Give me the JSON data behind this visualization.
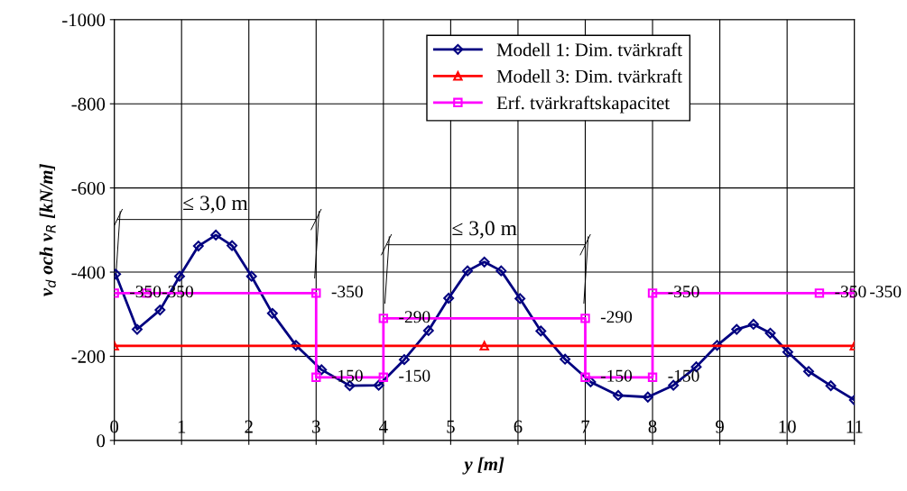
{
  "chart_data": {
    "type": "line",
    "xlabel": "y [m]",
    "ylabel": "v$_{d}$ och v$_{R}$ [kN/m]",
    "xlim": [
      0,
      11
    ],
    "xticks": [
      0,
      1,
      2,
      3,
      4,
      5,
      6,
      7,
      8,
      9,
      10,
      11
    ],
    "ylim": [
      0,
      -1000
    ],
    "yticks": [
      0,
      -200,
      -400,
      -600,
      -800,
      -1000
    ],
    "grid": true,
    "legend": "top",
    "line_style": "solid",
    "series": [
      {
        "name": "Modell 1: Dim. tvärkraft",
        "color": "#000080",
        "marker": "diamond",
        "x": [
          0.02,
          0.34,
          0.68,
          0.97,
          1.25,
          1.51,
          1.75,
          2.04,
          2.35,
          2.7,
          3.08,
          3.5,
          3.93,
          4.31,
          4.67,
          4.97,
          5.25,
          5.5,
          5.75,
          6.03,
          6.34,
          6.7,
          7.08,
          7.49,
          7.93,
          8.31,
          8.65,
          8.96,
          9.25,
          9.5,
          9.75,
          10.01,
          10.32,
          10.65,
          11.0
        ],
        "values": [
          -395,
          -264,
          -310,
          -390,
          -462,
          -488,
          -463,
          -390,
          -302,
          -226,
          -168,
          -130,
          -131,
          -192,
          -261,
          -338,
          -403,
          -424,
          -403,
          -337,
          -260,
          -193,
          -139,
          -107,
          -103,
          -131,
          -175,
          -226,
          -264,
          -276,
          -255,
          -210,
          -164,
          -130,
          -96
        ]
      },
      {
        "name": "Modell 3: Dim. tvärkraft",
        "color": "#ff0000",
        "marker": "triangle",
        "x": [
          0,
          5.5,
          11
        ],
        "values": [
          -225,
          -225,
          -225
        ]
      },
      {
        "name": "Erf. tvärkraftskapacitet",
        "color": "#ff00ff",
        "marker": "square",
        "x": [
          0,
          0.48,
          3,
          3,
          4,
          4,
          7,
          7,
          8,
          8,
          10.48,
          11
        ],
        "values": [
          -350,
          -350,
          -350,
          -150,
          -150,
          -290,
          -290,
          -150,
          -150,
          -350,
          -350,
          -350
        ],
        "value_labels": [
          "-350",
          "-350",
          "-350",
          "-150",
          "-150",
          "-290",
          "-290",
          "-150",
          "-150",
          "-350",
          "-350",
          "-350"
        ]
      }
    ],
    "annotations": [
      "≤ 3,0 m",
      "≤ 3,0 m"
    ]
  }
}
